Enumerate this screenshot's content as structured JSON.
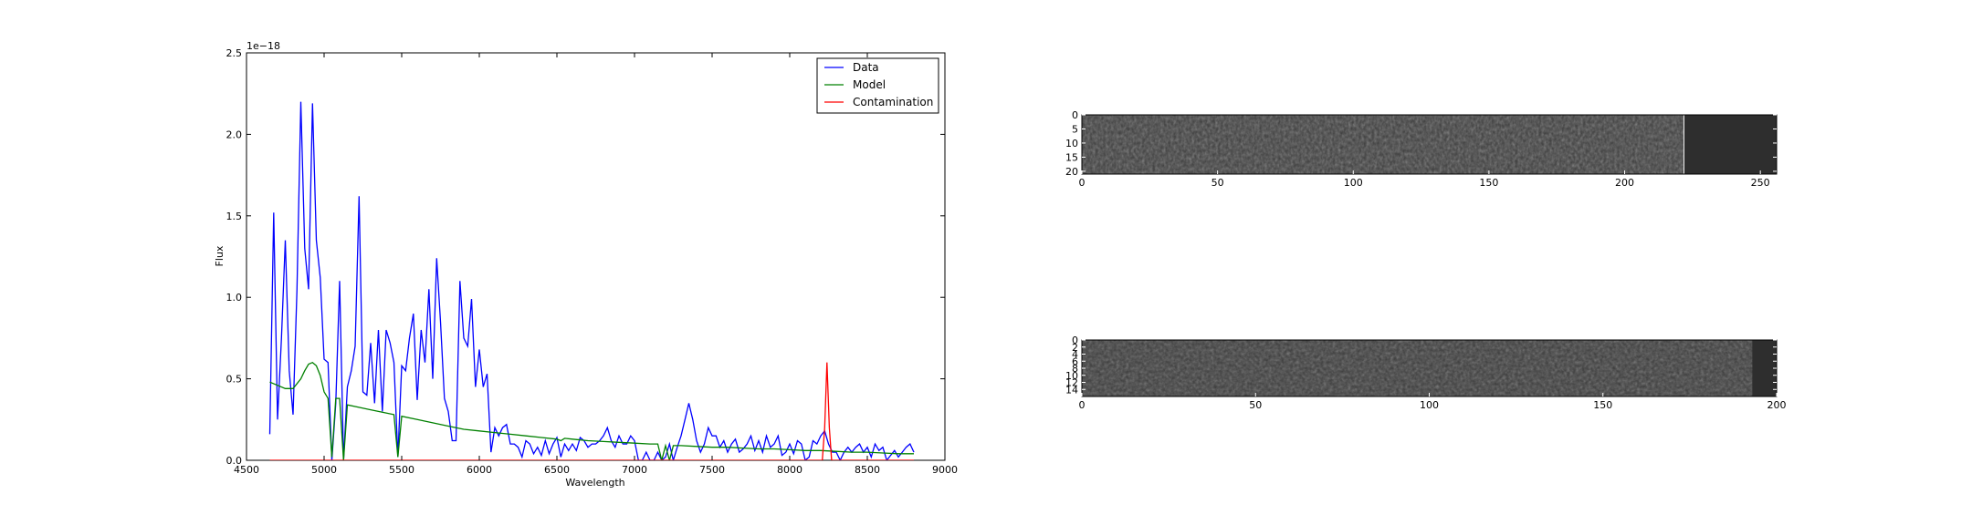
{
  "chart_data": [
    {
      "type": "line",
      "xlabel": "Wavelength",
      "ylabel": "Flux",
      "offset_label": "1e−18",
      "xlim": [
        4500,
        9000
      ],
      "ylim": [
        0,
        2.5
      ],
      "x_ticks": [
        4500,
        5000,
        5500,
        6000,
        6500,
        7000,
        7500,
        8000,
        8500,
        9000
      ],
      "y_ticks": [
        0.0,
        0.5,
        1.0,
        1.5,
        2.0,
        2.5
      ],
      "y_tick_labels": [
        "0.0",
        "0.5",
        "1.0",
        "1.5",
        "2.0",
        "2.5"
      ],
      "grid": false,
      "legend_position": "top-right",
      "series": [
        {
          "name": "Data",
          "color": "#0000ff",
          "points": [
            [
              4650,
              0.16
            ],
            [
              4675,
              1.52
            ],
            [
              4700,
              0.25
            ],
            [
              4725,
              0.75
            ],
            [
              4750,
              1.35
            ],
            [
              4775,
              0.55
            ],
            [
              4800,
              0.28
            ],
            [
              4825,
              1.05
            ],
            [
              4850,
              2.2
            ],
            [
              4875,
              1.3
            ],
            [
              4900,
              1.05
            ],
            [
              4925,
              2.19
            ],
            [
              4950,
              1.35
            ],
            [
              4975,
              1.12
            ],
            [
              5000,
              0.62
            ],
            [
              5025,
              0.6
            ],
            [
              5050,
              0.0
            ],
            [
              5075,
              0.35
            ],
            [
              5100,
              1.1
            ],
            [
              5125,
              0.0
            ],
            [
              5150,
              0.45
            ],
            [
              5175,
              0.55
            ],
            [
              5200,
              0.7
            ],
            [
              5225,
              1.62
            ],
            [
              5250,
              0.42
            ],
            [
              5275,
              0.4
            ],
            [
              5300,
              0.72
            ],
            [
              5325,
              0.35
            ],
            [
              5350,
              0.8
            ],
            [
              5375,
              0.3
            ],
            [
              5400,
              0.8
            ],
            [
              5425,
              0.72
            ],
            [
              5450,
              0.6
            ],
            [
              5475,
              0.02
            ],
            [
              5500,
              0.58
            ],
            [
              5525,
              0.55
            ],
            [
              5550,
              0.75
            ],
            [
              5575,
              0.9
            ],
            [
              5600,
              0.37
            ],
            [
              5625,
              0.8
            ],
            [
              5650,
              0.6
            ],
            [
              5675,
              1.05
            ],
            [
              5700,
              0.5
            ],
            [
              5725,
              1.24
            ],
            [
              5750,
              0.85
            ],
            [
              5775,
              0.38
            ],
            [
              5800,
              0.3
            ],
            [
              5825,
              0.12
            ],
            [
              5850,
              0.12
            ],
            [
              5875,
              1.1
            ],
            [
              5900,
              0.75
            ],
            [
              5925,
              0.7
            ],
            [
              5950,
              0.99
            ],
            [
              5975,
              0.45
            ],
            [
              6000,
              0.68
            ],
            [
              6025,
              0.45
            ],
            [
              6050,
              0.53
            ],
            [
              6075,
              0.05
            ],
            [
              6100,
              0.2
            ],
            [
              6125,
              0.15
            ],
            [
              6150,
              0.2
            ],
            [
              6175,
              0.22
            ],
            [
              6200,
              0.1
            ],
            [
              6225,
              0.1
            ],
            [
              6250,
              0.08
            ],
            [
              6275,
              0.02
            ],
            [
              6300,
              0.12
            ],
            [
              6325,
              0.1
            ],
            [
              6350,
              0.04
            ],
            [
              6375,
              0.08
            ],
            [
              6400,
              0.03
            ],
            [
              6425,
              0.12
            ],
            [
              6450,
              0.04
            ],
            [
              6475,
              0.1
            ],
            [
              6500,
              0.14
            ],
            [
              6525,
              0.02
            ],
            [
              6550,
              0.1
            ],
            [
              6575,
              0.06
            ],
            [
              6600,
              0.1
            ],
            [
              6625,
              0.06
            ],
            [
              6650,
              0.14
            ],
            [
              6675,
              0.12
            ],
            [
              6700,
              0.08
            ],
            [
              6725,
              0.1
            ],
            [
              6750,
              0.1
            ],
            [
              6775,
              0.12
            ],
            [
              6800,
              0.15
            ],
            [
              6825,
              0.2
            ],
            [
              6850,
              0.12
            ],
            [
              6875,
              0.08
            ],
            [
              6900,
              0.15
            ],
            [
              6925,
              0.1
            ],
            [
              6950,
              0.1
            ],
            [
              6975,
              0.15
            ],
            [
              7000,
              0.12
            ],
            [
              7025,
              0.0
            ],
            [
              7050,
              0.0
            ],
            [
              7075,
              0.05
            ],
            [
              7100,
              0.0
            ],
            [
              7125,
              0.0
            ],
            [
              7150,
              0.05
            ],
            [
              7175,
              0.0
            ],
            [
              7200,
              0.02
            ],
            [
              7225,
              0.1
            ],
            [
              7250,
              0.0
            ],
            [
              7275,
              0.08
            ],
            [
              7300,
              0.15
            ],
            [
              7325,
              0.25
            ],
            [
              7350,
              0.35
            ],
            [
              7375,
              0.25
            ],
            [
              7400,
              0.12
            ],
            [
              7425,
              0.05
            ],
            [
              7450,
              0.1
            ],
            [
              7475,
              0.2
            ],
            [
              7500,
              0.15
            ],
            [
              7525,
              0.15
            ],
            [
              7550,
              0.08
            ],
            [
              7575,
              0.12
            ],
            [
              7600,
              0.05
            ],
            [
              7625,
              0.1
            ],
            [
              7650,
              0.13
            ],
            [
              7675,
              0.05
            ],
            [
              7700,
              0.07
            ],
            [
              7725,
              0.1
            ],
            [
              7750,
              0.15
            ],
            [
              7775,
              0.06
            ],
            [
              7800,
              0.12
            ],
            [
              7825,
              0.05
            ],
            [
              7850,
              0.15
            ],
            [
              7875,
              0.08
            ],
            [
              7900,
              0.1
            ],
            [
              7925,
              0.15
            ],
            [
              7950,
              0.03
            ],
            [
              7975,
              0.05
            ],
            [
              8000,
              0.1
            ],
            [
              8025,
              0.04
            ],
            [
              8050,
              0.12
            ],
            [
              8075,
              0.1
            ],
            [
              8100,
              0.0
            ],
            [
              8125,
              0.02
            ],
            [
              8150,
              0.12
            ],
            [
              8175,
              0.1
            ],
            [
              8200,
              0.15
            ],
            [
              8225,
              0.18
            ],
            [
              8250,
              0.1
            ],
            [
              8275,
              0.05
            ],
            [
              8300,
              0.05
            ],
            [
              8325,
              0.0
            ],
            [
              8350,
              0.05
            ],
            [
              8375,
              0.08
            ],
            [
              8400,
              0.05
            ],
            [
              8425,
              0.08
            ],
            [
              8450,
              0.1
            ],
            [
              8475,
              0.05
            ],
            [
              8500,
              0.08
            ],
            [
              8525,
              0.02
            ],
            [
              8550,
              0.1
            ],
            [
              8575,
              0.06
            ],
            [
              8600,
              0.08
            ],
            [
              8625,
              0.0
            ],
            [
              8650,
              0.03
            ],
            [
              8675,
              0.06
            ],
            [
              8700,
              0.02
            ],
            [
              8725,
              0.05
            ],
            [
              8750,
              0.08
            ],
            [
              8775,
              0.1
            ],
            [
              8800,
              0.05
            ]
          ]
        },
        {
          "name": "Model",
          "color": "#008000",
          "points": [
            [
              4650,
              0.48
            ],
            [
              4750,
              0.44
            ],
            [
              4800,
              0.44
            ],
            [
              4850,
              0.5
            ],
            [
              4875,
              0.55
            ],
            [
              4900,
              0.59
            ],
            [
              4925,
              0.6
            ],
            [
              4950,
              0.58
            ],
            [
              4975,
              0.52
            ],
            [
              5000,
              0.42
            ],
            [
              5025,
              0.38
            ],
            [
              5050,
              0.02
            ],
            [
              5075,
              0.38
            ],
            [
              5100,
              0.38
            ],
            [
              5125,
              0.0
            ],
            [
              5150,
              0.34
            ],
            [
              5200,
              0.33
            ],
            [
              5300,
              0.31
            ],
            [
              5400,
              0.29
            ],
            [
              5450,
              0.28
            ],
            [
              5475,
              0.02
            ],
            [
              5500,
              0.27
            ],
            [
              5600,
              0.25
            ],
            [
              5700,
              0.23
            ],
            [
              5800,
              0.21
            ],
            [
              5900,
              0.19
            ],
            [
              6000,
              0.18
            ],
            [
              6100,
              0.17
            ],
            [
              6200,
              0.16
            ],
            [
              6300,
              0.15
            ],
            [
              6400,
              0.14
            ],
            [
              6500,
              0.13
            ],
            [
              6525,
              0.12
            ],
            [
              6550,
              0.135
            ],
            [
              6600,
              0.13
            ],
            [
              6700,
              0.12
            ],
            [
              6800,
              0.115
            ],
            [
              6900,
              0.11
            ],
            [
              7000,
              0.105
            ],
            [
              7100,
              0.1
            ],
            [
              7150,
              0.1
            ],
            [
              7175,
              0.0
            ],
            [
              7200,
              0.09
            ],
            [
              7225,
              0.0
            ],
            [
              7250,
              0.09
            ],
            [
              7300,
              0.09
            ],
            [
              7400,
              0.085
            ],
            [
              7500,
              0.08
            ],
            [
              7600,
              0.08
            ],
            [
              7700,
              0.075
            ],
            [
              7800,
              0.07
            ],
            [
              7900,
              0.07
            ],
            [
              8000,
              0.065
            ],
            [
              8100,
              0.06
            ],
            [
              8200,
              0.06
            ],
            [
              8300,
              0.055
            ],
            [
              8400,
              0.05
            ],
            [
              8500,
              0.05
            ],
            [
              8600,
              0.045
            ],
            [
              8700,
              0.04
            ],
            [
              8800,
              0.04
            ]
          ]
        },
        {
          "name": "Contamination",
          "color": "#ff0000",
          "points": [
            [
              4650,
              0.0
            ],
            [
              8210,
              0.0
            ],
            [
              8225,
              0.2
            ],
            [
              8240,
              0.6
            ],
            [
              8255,
              0.2
            ],
            [
              8270,
              0.0
            ],
            [
              8800,
              0.0
            ]
          ]
        }
      ]
    },
    {
      "type": "heatmap",
      "colormap": "gray",
      "x_ticks": [
        0,
        50,
        100,
        150,
        200,
        250
      ],
      "y_ticks": [
        0,
        5,
        10,
        15,
        20
      ],
      "xlim": [
        0,
        256
      ],
      "ylim": [
        21,
        0
      ],
      "masked_from_column": 222,
      "masked_color": "#2e2e2e"
    },
    {
      "type": "heatmap",
      "colormap": "gray",
      "x_ticks": [
        0,
        50,
        100,
        150,
        200
      ],
      "y_ticks": [
        0,
        2,
        4,
        6,
        8,
        10,
        12,
        14
      ],
      "xlim": [
        0,
        200
      ],
      "ylim": [
        16,
        0
      ],
      "masked_from_column": 193,
      "masked_color": "#2e2e2e"
    }
  ]
}
